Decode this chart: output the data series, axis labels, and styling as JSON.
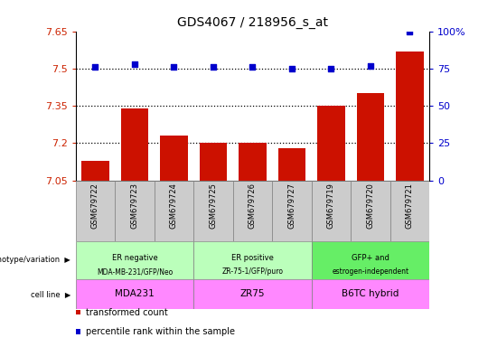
{
  "title": "GDS4067 / 218956_s_at",
  "samples": [
    "GSM679722",
    "GSM679723",
    "GSM679724",
    "GSM679725",
    "GSM679726",
    "GSM679727",
    "GSM679719",
    "GSM679720",
    "GSM679721"
  ],
  "bar_values": [
    7.13,
    7.34,
    7.23,
    7.2,
    7.2,
    7.18,
    7.35,
    7.4,
    7.57
  ],
  "dot_values": [
    76,
    78,
    76,
    76,
    76,
    75,
    75,
    77,
    100
  ],
  "ylim_left": [
    7.05,
    7.65
  ],
  "ylim_right": [
    0,
    100
  ],
  "yticks_left": [
    7.05,
    7.2,
    7.35,
    7.5,
    7.65
  ],
  "yticks_right": [
    0,
    25,
    50,
    75,
    100
  ],
  "hlines": [
    7.2,
    7.35,
    7.5
  ],
  "bar_color": "#cc1100",
  "dot_color": "#0000cc",
  "bar_width": 0.7,
  "groups": [
    {
      "label": "ER negative\nMDA-MB-231/GFP/Neo",
      "indices": [
        0,
        1,
        2
      ],
      "color": "#bbffbb"
    },
    {
      "label": "ER positive\nZR-75-1/GFP/puro",
      "indices": [
        3,
        4,
        5
      ],
      "color": "#bbffbb"
    },
    {
      "label": "GFP+ and\nestrogen-independent",
      "indices": [
        6,
        7,
        8
      ],
      "color": "#66ee66"
    }
  ],
  "cell_lines": [
    {
      "label": "MDA231",
      "indices": [
        0,
        1,
        2
      ],
      "color": "#ff88ff"
    },
    {
      "label": "ZR75",
      "indices": [
        3,
        4,
        5
      ],
      "color": "#ff88ff"
    },
    {
      "label": "B6TC hybrid",
      "indices": [
        6,
        7,
        8
      ],
      "color": "#ff88ff"
    }
  ],
  "row_labels": [
    "genotype/variation",
    "cell line"
  ],
  "legend_items": [
    {
      "color": "#cc1100",
      "label": "transformed count"
    },
    {
      "color": "#0000cc",
      "label": "percentile rank within the sample"
    }
  ],
  "tick_color_left": "#cc2200",
  "tick_color_right": "#0000cc",
  "sample_box_color": "#cccccc"
}
